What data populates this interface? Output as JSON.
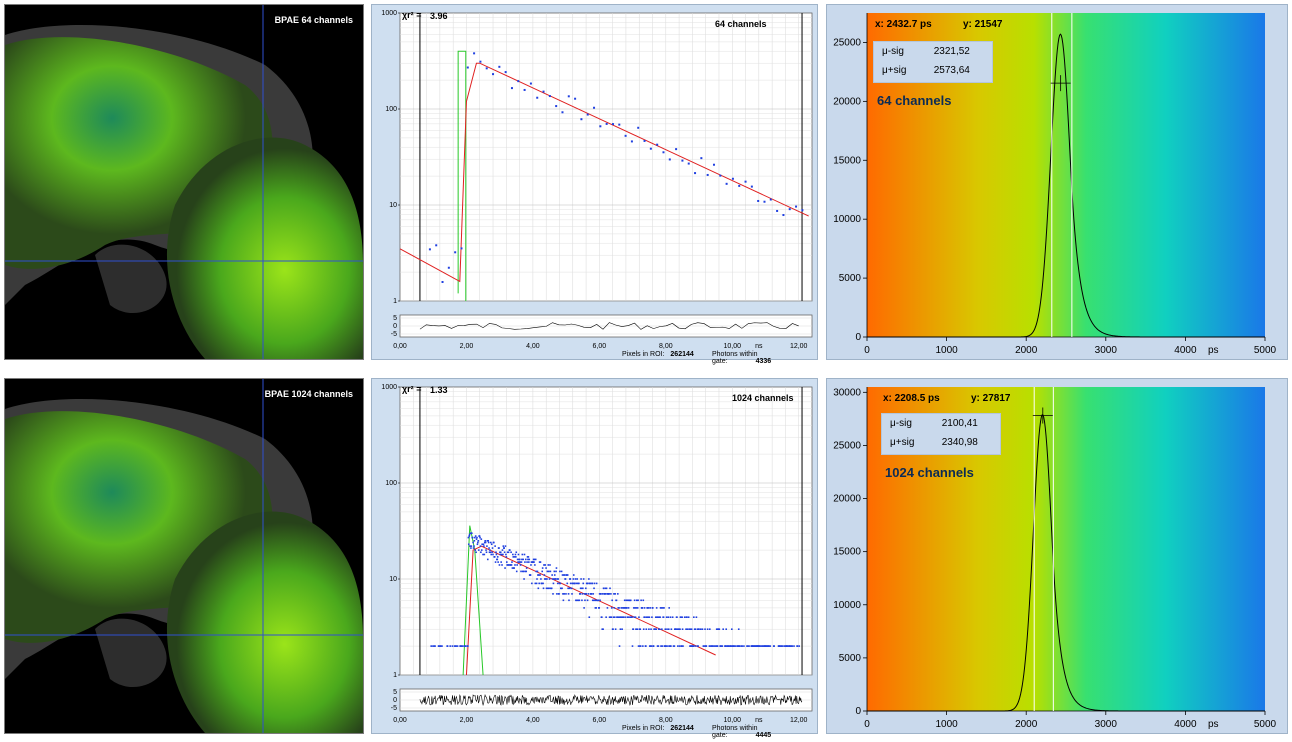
{
  "rows": [
    {
      "image_label": "BPAE 64 channels",
      "decay": {
        "chi_symbol": "χr²",
        "chi_eq": "=",
        "chi_value": "3.96",
        "channels_label": "64 channels",
        "y_ticks": [
          "1000",
          "100",
          "10",
          "1"
        ],
        "res_ticks": [
          "5",
          "0",
          "-5"
        ],
        "x_ticks": [
          "0,00",
          "2,00",
          "4,00",
          "6,00",
          "8,00",
          "10,00",
          "12,00"
        ],
        "x_unit": "ns",
        "pixels_label": "Pixels in ROI:",
        "pixels_value": "262144",
        "photons_label": "Photons within gate:",
        "photons_value": "4336"
      },
      "hist": {
        "x_readout": "x: 2432.7  ps",
        "y_readout": "y: 21547",
        "stats": [
          {
            "key": "μ-sig",
            "value": "2321,52"
          },
          {
            "key": "μ+sig",
            "value": "2573,64"
          }
        ],
        "channels_label": "64 channels",
        "y_ticks": [
          "25000",
          "20000",
          "15000",
          "10000",
          "5000",
          "0"
        ],
        "x_ticks": [
          "0",
          "1000",
          "2000",
          "3000",
          "4000",
          "5000"
        ],
        "x_unit": "ps"
      }
    },
    {
      "image_label": "BPAE 1024 channels",
      "decay": {
        "chi_symbol": "χr²",
        "chi_eq": "=",
        "chi_value": "1.33",
        "channels_label": "1024 channels",
        "y_ticks": [
          "1000",
          "100",
          "10",
          "1"
        ],
        "res_ticks": [
          "5",
          "0",
          "-5"
        ],
        "x_ticks": [
          "0,00",
          "2,00",
          "4,00",
          "6,00",
          "8,00",
          "10,00",
          "12,00"
        ],
        "x_unit": "ns",
        "pixels_label": "Pixels in ROI:",
        "pixels_value": "262144",
        "photons_label": "Photons within gate:",
        "photons_value": "4445"
      },
      "hist": {
        "x_readout": "x: 2208.5  ps",
        "y_readout": "y: 27817",
        "stats": [
          {
            "key": "μ-sig",
            "value": "2100,41"
          },
          {
            "key": "μ+sig",
            "value": "2340,98"
          }
        ],
        "channels_label": "1024 channels",
        "y_ticks": [
          "30000",
          "25000",
          "20000",
          "15000",
          "10000",
          "5000",
          "0"
        ],
        "x_ticks": [
          "0",
          "1000",
          "2000",
          "3000",
          "4000",
          "5000"
        ],
        "x_unit": "ps"
      }
    }
  ]
}
